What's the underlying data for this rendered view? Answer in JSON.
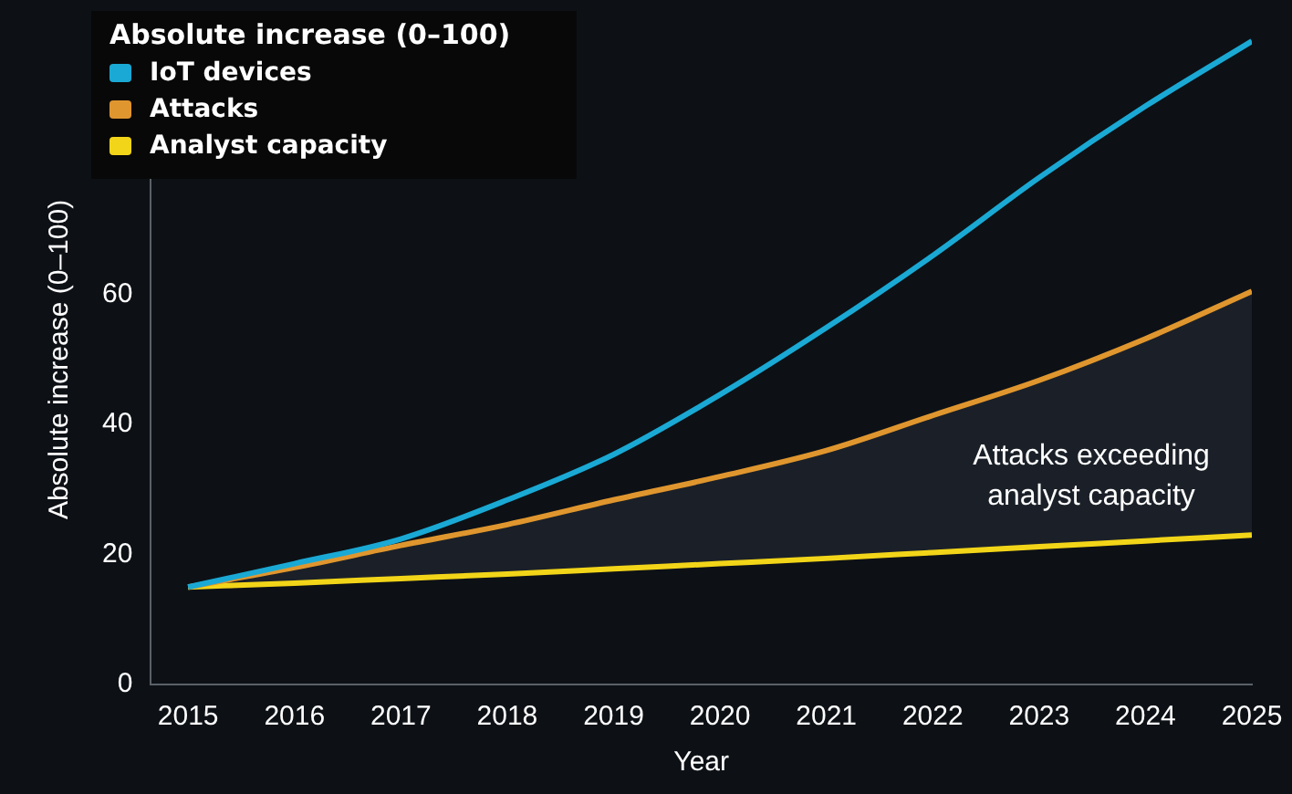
{
  "chart_data": {
    "type": "line",
    "xlabel": "Year",
    "ylabel": "Absolute increase (0–100)",
    "legend_title": "Absolute increase (0–100)",
    "legend": "top left",
    "grid": false,
    "marker": "none",
    "line_style": "solid",
    "x": [
      2015,
      2016,
      2017,
      2018,
      2019,
      2020,
      2021,
      2022,
      2023,
      2024,
      2025
    ],
    "xlim": [
      2014.65,
      2025
    ],
    "xticks": [
      2015,
      2016,
      2017,
      2018,
      2019,
      2020,
      2021,
      2022,
      2023,
      2024,
      2025
    ],
    "ylim": [
      0,
      100
    ],
    "yticks": [
      0,
      20,
      40,
      60
    ],
    "series": [
      {
        "name": "IoT devices",
        "color": "#1aa9d4",
        "values": [
          15,
          18.6,
          22.4,
          28.4,
          35.4,
          44.6,
          54.9,
          66,
          78,
          89,
          99
        ]
      },
      {
        "name": "Attacks",
        "color": "#e0962e",
        "values": [
          15,
          18,
          21.4,
          24.6,
          28.4,
          32,
          36,
          41.4,
          46.8,
          53.2,
          60.5
        ],
        "lower": [
          15,
          15.6,
          16.3,
          17,
          17.8,
          18.6,
          19.4,
          20.3,
          21.2,
          22.1,
          23
        ],
        "upper": [
          15,
          18,
          21.4,
          24.6,
          28.4,
          32,
          36,
          41.4,
          46.8,
          53.2,
          60.5
        ]
      },
      {
        "name": "Analyst capacity",
        "color": "#f2d518",
        "values": [
          15,
          15.6,
          16.3,
          17,
          17.8,
          18.6,
          19.4,
          20.3,
          21.2,
          22.1,
          23
        ]
      }
    ],
    "annotations": [
      "Attacks exceeding analyst capacity"
    ]
  }
}
